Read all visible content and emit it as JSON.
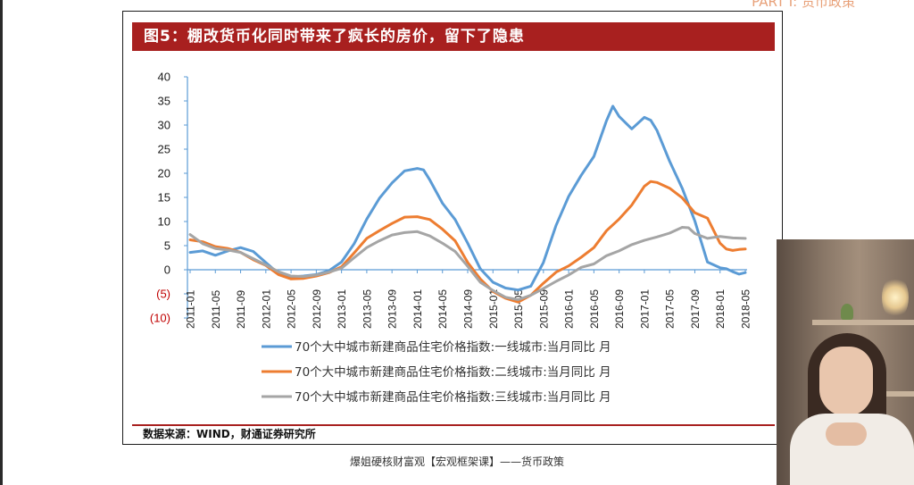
{
  "corner_text": "PART I: 货币政策",
  "slide": {
    "title": "图5：棚改货币化同时带来了疯长的房价，留下了隐患",
    "source": "数据来源：WIND，财通证券研究所"
  },
  "caption": "爆姐硬核财富观【宏观框架课】——货币政策",
  "colors": {
    "title_bg": "#a8201f",
    "tier1": "#5b9bd5",
    "tier2": "#ed7d31",
    "tier3": "#a5a5a5",
    "negative_label": "#c00000"
  },
  "chart_data": {
    "type": "line",
    "title": "",
    "xlabel": "",
    "ylabel": "",
    "ylim": [
      -10,
      40
    ],
    "y_ticks": [
      "40",
      "35",
      "30",
      "25",
      "20",
      "15",
      "10",
      "5",
      "0",
      "(5)",
      "(10)"
    ],
    "x_tick_labels": [
      "2011-01",
      "2011-05",
      "2011-09",
      "2012-01",
      "2012-05",
      "2012-09",
      "2013-01",
      "2013-05",
      "2013-09",
      "2014-01",
      "2014-05",
      "2014-09",
      "2015-01",
      "2015-05",
      "2015-09",
      "2016-01",
      "2016-05",
      "2016-09",
      "2017-01",
      "2017-05",
      "2017-09",
      "2018-01",
      "2018-05"
    ],
    "legend_position": "bottom",
    "grid": false,
    "series": [
      {
        "name": "70个大中城市新建商品住宅价格指数:一线城市:当月同比 月",
        "color": "#5b9bd5",
        "points": [
          [
            "2011-01",
            3.6
          ],
          [
            "2011-03",
            3.9
          ],
          [
            "2011-05",
            3.0
          ],
          [
            "2011-07",
            3.9
          ],
          [
            "2011-09",
            4.6
          ],
          [
            "2011-11",
            3.8
          ],
          [
            "2012-01",
            1.5
          ],
          [
            "2012-03",
            -0.8
          ],
          [
            "2012-05",
            -1.5
          ],
          [
            "2012-07",
            -1.3
          ],
          [
            "2012-09",
            -1.0
          ],
          [
            "2012-11",
            -0.2
          ],
          [
            "2013-01",
            1.6
          ],
          [
            "2013-03",
            5.4
          ],
          [
            "2013-05",
            10.5
          ],
          [
            "2013-07",
            14.8
          ],
          [
            "2013-09",
            18.0
          ],
          [
            "2013-11",
            20.5
          ],
          [
            "2014-01",
            21.0
          ],
          [
            "2014-02",
            20.7
          ],
          [
            "2014-03",
            18.6
          ],
          [
            "2014-05",
            13.8
          ],
          [
            "2014-07",
            10.4
          ],
          [
            "2014-09",
            5.5
          ],
          [
            "2014-11",
            0.2
          ],
          [
            "2015-01",
            -2.6
          ],
          [
            "2015-03",
            -3.8
          ],
          [
            "2015-05",
            -4.2
          ],
          [
            "2015-07",
            -3.4
          ],
          [
            "2015-09",
            1.5
          ],
          [
            "2015-11",
            9.2
          ],
          [
            "2016-01",
            15.2
          ],
          [
            "2016-03",
            19.6
          ],
          [
            "2016-05",
            23.5
          ],
          [
            "2016-07",
            30.9
          ],
          [
            "2016-08",
            33.9
          ],
          [
            "2016-09",
            31.8
          ],
          [
            "2016-11",
            29.2
          ],
          [
            "2017-01",
            31.6
          ],
          [
            "2017-02",
            31.0
          ],
          [
            "2017-03",
            28.9
          ],
          [
            "2017-05",
            22.5
          ],
          [
            "2017-07",
            16.9
          ],
          [
            "2017-09",
            10.1
          ],
          [
            "2017-11",
            1.6
          ],
          [
            "2018-01",
            0.4
          ],
          [
            "2018-02",
            0.2
          ],
          [
            "2018-03",
            -0.4
          ],
          [
            "2018-04",
            -0.9
          ],
          [
            "2018-05",
            -0.6
          ]
        ]
      },
      {
        "name": "70个大中城市新建商品住宅价格指数:二线城市:当月同比 月",
        "color": "#ed7d31",
        "points": [
          [
            "2011-01",
            6.2
          ],
          [
            "2011-03",
            5.8
          ],
          [
            "2011-05",
            4.8
          ],
          [
            "2011-07",
            4.4
          ],
          [
            "2011-09",
            3.6
          ],
          [
            "2011-11",
            2.1
          ],
          [
            "2012-01",
            0.9
          ],
          [
            "2012-03",
            -1.0
          ],
          [
            "2012-05",
            -1.9
          ],
          [
            "2012-07",
            -1.8
          ],
          [
            "2012-09",
            -1.3
          ],
          [
            "2012-11",
            -0.6
          ],
          [
            "2013-01",
            0.6
          ],
          [
            "2013-03",
            3.5
          ],
          [
            "2013-05",
            6.5
          ],
          [
            "2013-07",
            8.1
          ],
          [
            "2013-09",
            9.6
          ],
          [
            "2013-11",
            10.9
          ],
          [
            "2014-01",
            11.0
          ],
          [
            "2014-03",
            10.4
          ],
          [
            "2014-05",
            8.4
          ],
          [
            "2014-07",
            6.0
          ],
          [
            "2014-09",
            1.5
          ],
          [
            "2014-11",
            -1.9
          ],
          [
            "2015-01",
            -4.5
          ],
          [
            "2015-03",
            -5.9
          ],
          [
            "2015-05",
            -6.7
          ],
          [
            "2015-07",
            -5.3
          ],
          [
            "2015-09",
            -2.8
          ],
          [
            "2015-11",
            -0.5
          ],
          [
            "2016-01",
            0.8
          ],
          [
            "2016-03",
            2.6
          ],
          [
            "2016-05",
            4.6
          ],
          [
            "2016-07",
            8.1
          ],
          [
            "2016-09",
            10.5
          ],
          [
            "2016-11",
            13.4
          ],
          [
            "2017-01",
            17.3
          ],
          [
            "2017-02",
            18.3
          ],
          [
            "2017-03",
            18.1
          ],
          [
            "2017-05",
            16.9
          ],
          [
            "2017-07",
            14.9
          ],
          [
            "2017-09",
            11.8
          ],
          [
            "2017-11",
            10.7
          ],
          [
            "2018-01",
            5.5
          ],
          [
            "2018-02",
            4.3
          ],
          [
            "2018-03",
            4.0
          ],
          [
            "2018-04",
            4.2
          ],
          [
            "2018-05",
            4.3
          ]
        ]
      },
      {
        "name": "70个大中城市新建商品住宅价格指数:三线城市:当月同比 月",
        "color": "#a5a5a5",
        "points": [
          [
            "2011-01",
            7.3
          ],
          [
            "2011-03",
            5.4
          ],
          [
            "2011-05",
            4.4
          ],
          [
            "2011-07",
            4.1
          ],
          [
            "2011-09",
            3.6
          ],
          [
            "2011-11",
            2.3
          ],
          [
            "2012-01",
            1.0
          ],
          [
            "2012-03",
            -0.4
          ],
          [
            "2012-05",
            -1.3
          ],
          [
            "2012-07",
            -1.4
          ],
          [
            "2012-09",
            -1.1
          ],
          [
            "2012-11",
            -0.5
          ],
          [
            "2013-01",
            0.3
          ],
          [
            "2013-03",
            2.5
          ],
          [
            "2013-05",
            4.6
          ],
          [
            "2013-07",
            6.0
          ],
          [
            "2013-09",
            7.2
          ],
          [
            "2013-11",
            7.7
          ],
          [
            "2014-01",
            7.9
          ],
          [
            "2014-03",
            7.0
          ],
          [
            "2014-05",
            5.5
          ],
          [
            "2014-07",
            3.8
          ],
          [
            "2014-09",
            0.7
          ],
          [
            "2014-11",
            -2.6
          ],
          [
            "2015-01",
            -4.3
          ],
          [
            "2015-03",
            -5.7
          ],
          [
            "2015-05",
            -6.2
          ],
          [
            "2015-07",
            -5.3
          ],
          [
            "2015-09",
            -3.9
          ],
          [
            "2015-11",
            -2.4
          ],
          [
            "2016-01",
            -1.1
          ],
          [
            "2016-03",
            0.5
          ],
          [
            "2016-05",
            1.2
          ],
          [
            "2016-07",
            2.9
          ],
          [
            "2016-09",
            3.9
          ],
          [
            "2016-11",
            5.2
          ],
          [
            "2017-01",
            6.1
          ],
          [
            "2017-03",
            6.8
          ],
          [
            "2017-05",
            7.6
          ],
          [
            "2017-07",
            8.8
          ],
          [
            "2017-08",
            8.7
          ],
          [
            "2017-09",
            7.5
          ],
          [
            "2017-11",
            6.5
          ],
          [
            "2018-01",
            6.9
          ],
          [
            "2018-03",
            6.6
          ],
          [
            "2018-05",
            6.5
          ]
        ]
      }
    ]
  }
}
